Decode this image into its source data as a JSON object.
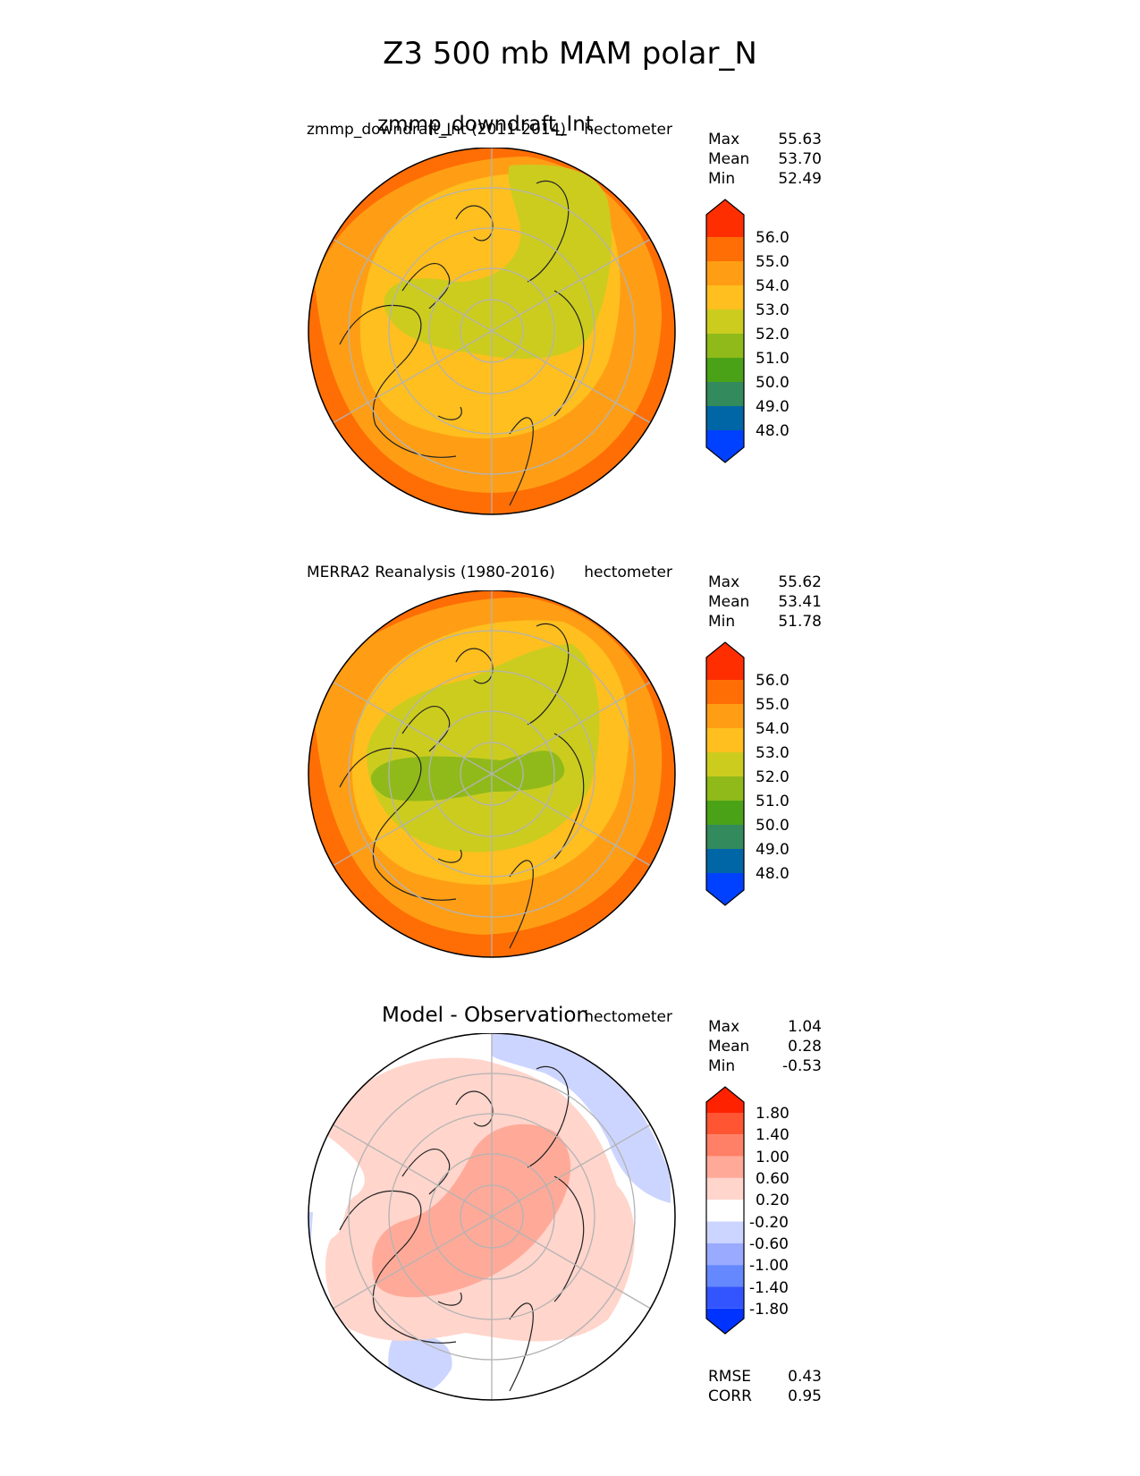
{
  "title": "Z3 500 mb MAM polar_N",
  "panels": [
    {
      "title": "zmmp_downdraft_Int",
      "left_label": "zmmp_downdraft_Int (2011-2014)",
      "units": "hectometer",
      "stats": [
        {
          "label": "Max",
          "value": "55.63"
        },
        {
          "label": "Mean",
          "value": "53.70"
        },
        {
          "label": "Min",
          "value": "52.49"
        }
      ],
      "colorbar_ticks": [
        "56.0",
        "55.0",
        "54.0",
        "53.0",
        "52.0",
        "51.0",
        "50.0",
        "49.0",
        "48.0"
      ]
    },
    {
      "title": "",
      "left_label": "MERRA2 Reanalysis (1980-2016)",
      "units": "hectometer",
      "stats": [
        {
          "label": "Max",
          "value": "55.62"
        },
        {
          "label": "Mean",
          "value": "53.41"
        },
        {
          "label": "Min",
          "value": "51.78"
        }
      ],
      "colorbar_ticks": [
        "56.0",
        "55.0",
        "54.0",
        "53.0",
        "52.0",
        "51.0",
        "50.0",
        "49.0",
        "48.0"
      ]
    },
    {
      "title": "Model - Observation",
      "left_label": "",
      "units": "hectometer",
      "stats": [
        {
          "label": "Max",
          "value": "1.04"
        },
        {
          "label": "Mean",
          "value": "0.28"
        },
        {
          "label": "Min",
          "value": "-0.53"
        }
      ],
      "colorbar_ticks": [
        "1.80",
        "1.40",
        "1.00",
        "0.60",
        "0.20",
        "-0.20",
        "-0.60",
        "-1.00",
        "-1.40",
        "-1.80"
      ],
      "extra_stats": [
        {
          "label": "RMSE",
          "value": "0.43"
        },
        {
          "label": "CORR",
          "value": "0.95"
        }
      ]
    }
  ],
  "colors": {
    "field_scale": [
      "#0040ff",
      "#0066a6",
      "#338a5c",
      "#4aa317",
      "#8fba1a",
      "#cccc1f",
      "#ffbf1f",
      "#ff9e14",
      "#ff6e05",
      "#ff2e00"
    ],
    "diff_scale": [
      "#0033ff",
      "#3355ff",
      "#6688ff",
      "#99aaff",
      "#ccd5ff",
      "#ffffff",
      "#ffd5cc",
      "#ffaa99",
      "#ff8066",
      "#ff5533",
      "#ff2200"
    ],
    "coast": "#222222",
    "grid": "#b3b3b3"
  },
  "chart_data": [
    {
      "type": "polar contour map",
      "title": "zmmp_downdraft_Int",
      "subtitle": "zmmp_downdraft_Int (2011-2014)",
      "units": "hectometer",
      "levels": [
        48,
        49,
        50,
        51,
        52,
        53,
        54,
        55,
        56
      ],
      "max": 55.63,
      "mean": 53.7,
      "min": 52.49
    },
    {
      "type": "polar contour map",
      "title": "MERRA2 Reanalysis (1980-2016)",
      "units": "hectometer",
      "levels": [
        48,
        49,
        50,
        51,
        52,
        53,
        54,
        55,
        56
      ],
      "max": 55.62,
      "mean": 53.41,
      "min": 51.78
    },
    {
      "type": "polar contour map",
      "title": "Model - Observation",
      "units": "hectometer",
      "levels": [
        -1.8,
        -1.4,
        -1.0,
        -0.6,
        -0.2,
        0.2,
        0.6,
        1.0,
        1.4,
        1.8
      ],
      "max": 1.04,
      "mean": 0.28,
      "min": -0.53,
      "rmse": 0.43,
      "corr": 0.95
    }
  ]
}
